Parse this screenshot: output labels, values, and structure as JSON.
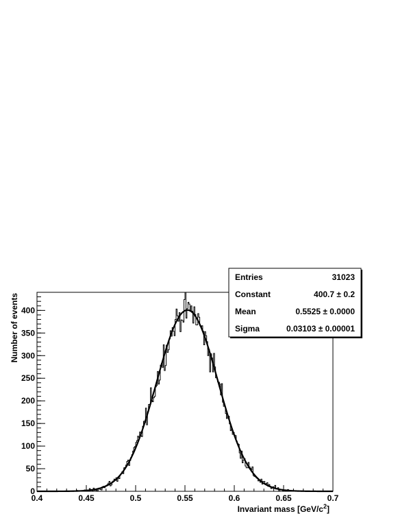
{
  "chart_data": {
    "type": "histogram",
    "xlabel": "Invariant mass [GeV/c",
    "xlabel_sup": "2",
    "xlabel_end": "]",
    "ylabel": "Number of events",
    "xlim": [
      0.4,
      0.7
    ],
    "ylim": [
      0,
      440
    ],
    "x_ticks": [
      {
        "v": 0.4,
        "label": "0.4"
      },
      {
        "v": 0.45,
        "label": "0.45"
      },
      {
        "v": 0.5,
        "label": "0.5"
      },
      {
        "v": 0.55,
        "label": "0.55"
      },
      {
        "v": 0.6,
        "label": "0.6"
      },
      {
        "v": 0.65,
        "label": "0.65"
      },
      {
        "v": 0.7,
        "label": "0.7"
      }
    ],
    "y_ticks": [
      {
        "v": 0,
        "label": "0"
      },
      {
        "v": 50,
        "label": "50"
      },
      {
        "v": 100,
        "label": "100"
      },
      {
        "v": 150,
        "label": "150"
      },
      {
        "v": 200,
        "label": "200"
      },
      {
        "v": 250,
        "label": "250"
      },
      {
        "v": 300,
        "label": "300"
      },
      {
        "v": 350,
        "label": "350"
      },
      {
        "v": 400,
        "label": "400"
      }
    ],
    "grid": false,
    "bin_range": [
      0.4,
      0.7
    ],
    "bin_width": 0.001,
    "fit": {
      "function": "gaus",
      "constant": 400.7,
      "mean": 0.5525,
      "sigma": 0.03103
    },
    "line_color": "#000000"
  },
  "stats": [
    {
      "label": "Entries",
      "value": "31023"
    },
    {
      "label": "Constant",
      "value": "400.7 ± 0.2"
    },
    {
      "label": "Mean",
      "value": "0.5525 ± 0.0000"
    },
    {
      "label": "Sigma",
      "value": "0.03103 ± 0.00001"
    }
  ]
}
